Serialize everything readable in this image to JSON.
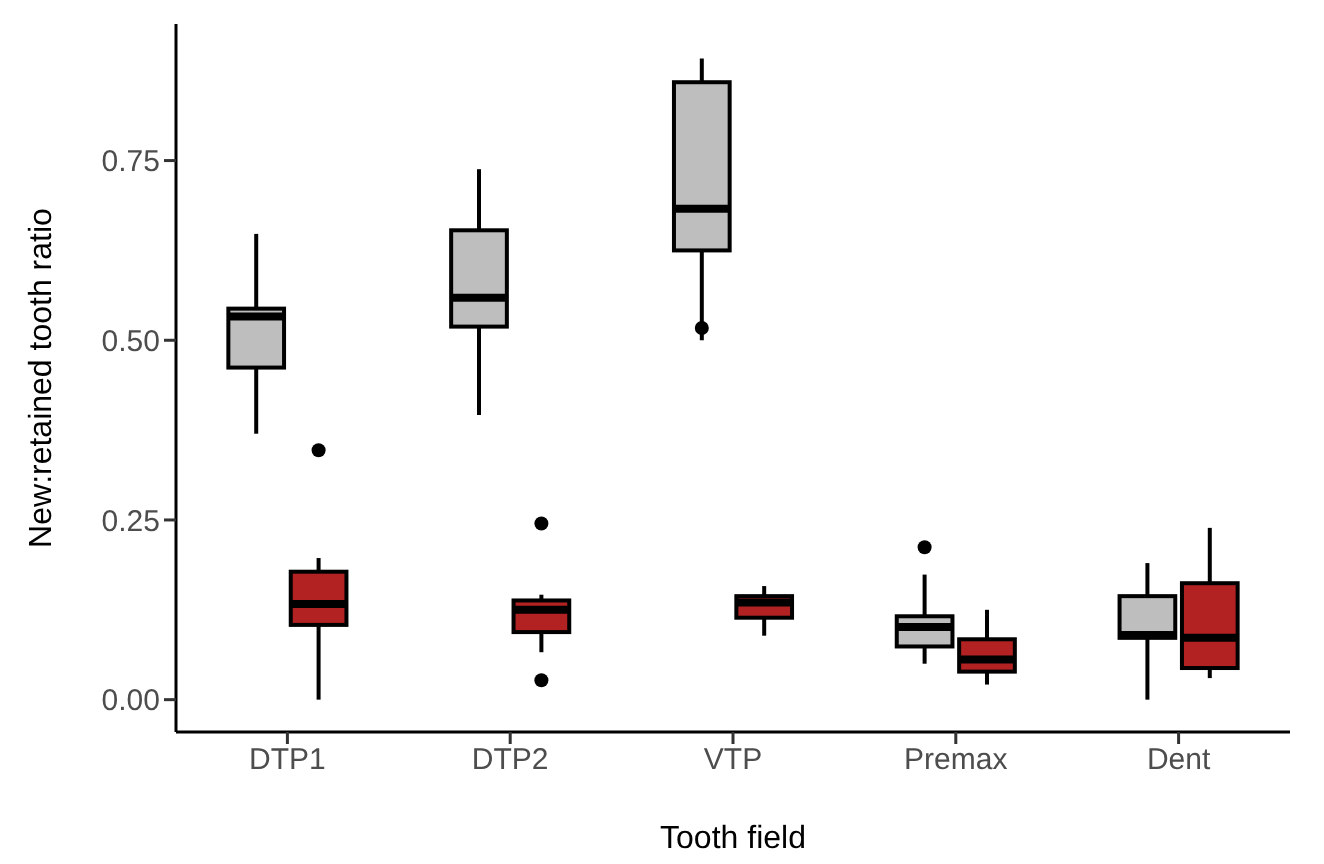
{
  "chart_data": {
    "type": "box",
    "xlabel": "Tooth field",
    "ylabel": "New:retained tooth ratio",
    "categories": [
      "DTP1",
      "DTP2",
      "VTP",
      "Premax",
      "Dent"
    ],
    "ylim": [
      -0.045,
      0.94
    ],
    "yticks": [
      {
        "value": 0,
        "label": "0.00"
      },
      {
        "value": 0.25,
        "label": "0.25"
      },
      {
        "value": 0.5,
        "label": "0.50"
      },
      {
        "value": 0.75,
        "label": "0.75"
      }
    ],
    "series": [
      {
        "color": "#bebebe",
        "boxes": [
          {
            "low": 0.37,
            "q1": 0.462,
            "median": 0.533,
            "q3": 0.544,
            "high": 0.648
          },
          {
            "low": 0.396,
            "q1": 0.519,
            "median": 0.559,
            "q3": 0.653,
            "high": 0.738
          },
          {
            "low": 0.5,
            "q1": 0.625,
            "median": 0.683,
            "q3": 0.859,
            "high": 0.892,
            "outliers": [
              0.517
            ]
          },
          {
            "low": 0.05,
            "q1": 0.074,
            "median": 0.101,
            "q3": 0.116,
            "high": 0.174,
            "outliers": [
              0.212
            ]
          },
          {
            "low": 0.0,
            "q1": 0.086,
            "median": 0.09,
            "q3": 0.144,
            "high": 0.19
          }
        ]
      },
      {
        "color": "#b22222",
        "boxes": [
          {
            "low": 0.0,
            "q1": 0.104,
            "median": 0.133,
            "q3": 0.178,
            "high": 0.197,
            "outliers": [
              0.347
            ]
          },
          {
            "low": 0.066,
            "q1": 0.094,
            "median": 0.125,
            "q3": 0.138,
            "high": 0.146,
            "outliers": [
              0.245,
              0.027
            ]
          },
          {
            "low": 0.089,
            "q1": 0.114,
            "median": 0.135,
            "q3": 0.144,
            "high": 0.158
          },
          {
            "low": 0.021,
            "q1": 0.039,
            "median": 0.056,
            "q3": 0.084,
            "high": 0.125
          },
          {
            "low": 0.03,
            "q1": 0.044,
            "median": 0.086,
            "q3": 0.162,
            "high": 0.239
          }
        ]
      }
    ]
  }
}
